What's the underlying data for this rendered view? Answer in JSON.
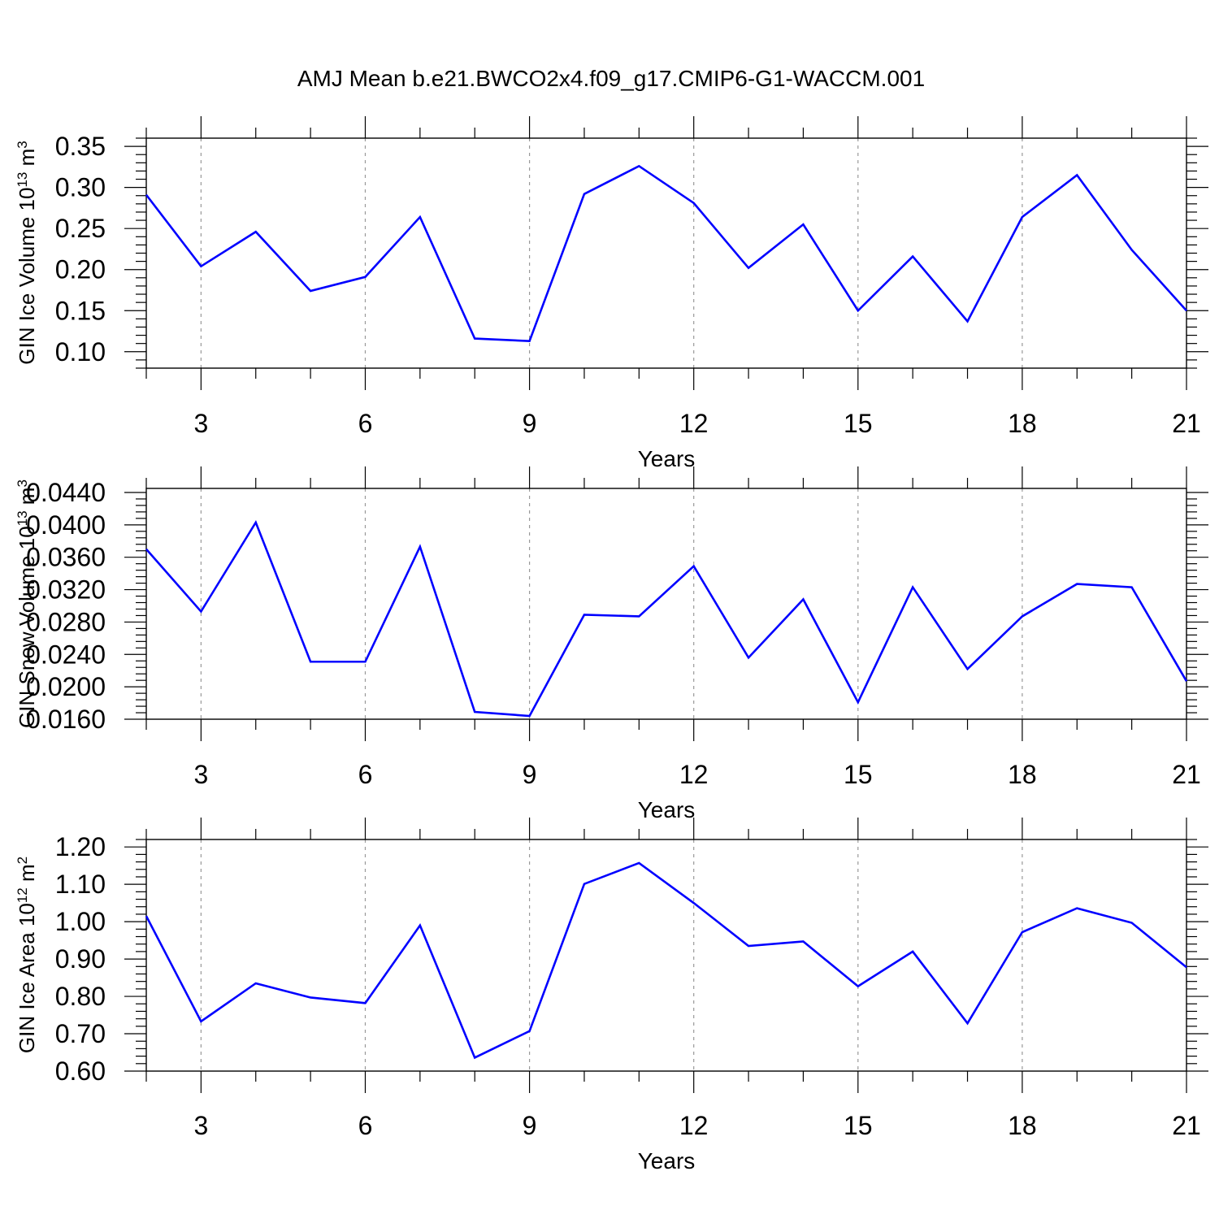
{
  "figure": {
    "title": "AMJ Mean b.e21.BWCO2x4.f09_g17.CMIP6-G1-WACCM.001"
  },
  "chart_data": [
    {
      "type": "line",
      "title": "",
      "xlabel": "Years",
      "ylabel": "GIN Ice Volume 10",
      "ylabel_exponent": "13",
      "ylabel_unit": " m",
      "ylabel_unit_exponent": "3",
      "xlim": [
        2,
        21
      ],
      "ylim": [
        0.08,
        0.36
      ],
      "x_ticks": [
        3,
        6,
        9,
        12,
        15,
        18,
        21
      ],
      "y_ticks": [
        "0.10",
        "0.15",
        "0.20",
        "0.25",
        "0.30",
        "0.35"
      ],
      "grid": "vertical dashed at major x ticks",
      "series": [
        {
          "color": "#0000ff",
          "x": [
            2,
            3,
            4,
            5,
            6,
            7,
            8,
            9,
            10,
            11,
            12,
            13,
            14,
            15,
            16,
            17,
            18,
            19,
            20,
            21
          ],
          "values": [
            0.291,
            0.204,
            0.246,
            0.174,
            0.191,
            0.264,
            0.116,
            0.113,
            0.292,
            0.326,
            0.281,
            0.202,
            0.255,
            0.15,
            0.216,
            0.137,
            0.264,
            0.315,
            0.224,
            0.15
          ]
        }
      ]
    },
    {
      "type": "line",
      "title": "",
      "xlabel": "Years",
      "ylabel": "GIN Snow Volume 10",
      "ylabel_exponent": "13",
      "ylabel_unit": " m",
      "ylabel_unit_exponent": "3",
      "xlim": [
        2,
        21
      ],
      "ylim": [
        0.016,
        0.0445
      ],
      "x_ticks": [
        3,
        6,
        9,
        12,
        15,
        18,
        21
      ],
      "y_ticks": [
        "0.0160",
        "0.0200",
        "0.0240",
        "0.0280",
        "0.0320",
        "0.0360",
        "0.0400",
        "0.0440"
      ],
      "grid": "vertical dashed at major x ticks",
      "series": [
        {
          "color": "#0000ff",
          "x": [
            2,
            3,
            4,
            5,
            6,
            7,
            8,
            9,
            10,
            11,
            12,
            13,
            14,
            15,
            16,
            17,
            18,
            19,
            20,
            21
          ],
          "values": [
            0.037,
            0.0293,
            0.0403,
            0.0231,
            0.0231,
            0.0373,
            0.0169,
            0.0164,
            0.0289,
            0.0287,
            0.0349,
            0.0236,
            0.0308,
            0.0181,
            0.0323,
            0.0222,
            0.0287,
            0.0327,
            0.0323,
            0.0207
          ]
        }
      ]
    },
    {
      "type": "line",
      "title": "",
      "xlabel": "Years",
      "ylabel": "GIN Ice Area 10",
      "ylabel_exponent": "12",
      "ylabel_unit": " m",
      "ylabel_unit_exponent": "2",
      "xlim": [
        2,
        21
      ],
      "ylim": [
        0.6,
        1.22
      ],
      "x_ticks": [
        3,
        6,
        9,
        12,
        15,
        18,
        21
      ],
      "y_ticks": [
        "0.60",
        "0.70",
        "0.80",
        "0.90",
        "1.00",
        "1.10",
        "1.20"
      ],
      "grid": "vertical dashed at major x ticks",
      "series": [
        {
          "color": "#0000ff",
          "x": [
            2,
            3,
            4,
            5,
            6,
            7,
            8,
            9,
            10,
            11,
            12,
            13,
            14,
            15,
            16,
            17,
            18,
            19,
            20,
            21
          ],
          "values": [
            1.015,
            0.733,
            0.835,
            0.797,
            0.782,
            0.99,
            0.636,
            0.707,
            1.101,
            1.157,
            1.05,
            0.935,
            0.947,
            0.827,
            0.92,
            0.728,
            0.972,
            1.036,
            0.997,
            0.878
          ]
        }
      ]
    }
  ]
}
